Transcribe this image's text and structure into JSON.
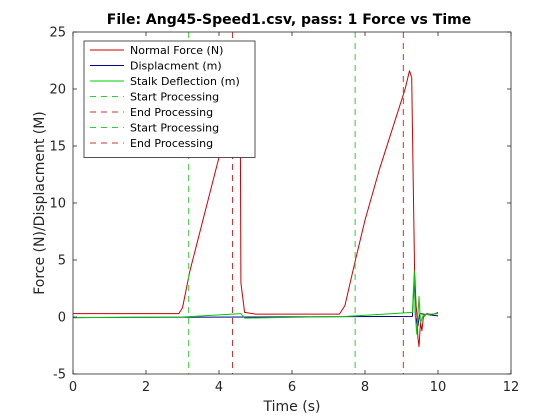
{
  "chart_data": {
    "type": "line",
    "title": "File: Ang45-Speed1.csv, pass: 1 Force vs Time",
    "xlabel": "Time (s)",
    "ylabel": "Force (N)/Displacment (M)",
    "xlim": [
      0,
      12
    ],
    "ylim": [
      -5,
      25
    ],
    "xticks": [
      0,
      2,
      4,
      6,
      8,
      10,
      12
    ],
    "yticks": [
      -5,
      0,
      5,
      10,
      15,
      20,
      25
    ],
    "grid": false,
    "legend_position": "top-left",
    "series": [
      {
        "name": "Normal Force (N)",
        "color": "#cc0000",
        "style": "solid",
        "points": [
          [
            0,
            0.3
          ],
          [
            2.9,
            0.3
          ],
          [
            3.0,
            0.8
          ],
          [
            3.2,
            4.0
          ],
          [
            3.6,
            9.0
          ],
          [
            4.0,
            14.0
          ],
          [
            4.4,
            17.2
          ],
          [
            4.58,
            19.5
          ],
          [
            4.6,
            3.0
          ],
          [
            4.7,
            0.4
          ],
          [
            5.0,
            0.25
          ],
          [
            6.0,
            0.25
          ],
          [
            7.3,
            0.25
          ],
          [
            7.45,
            1.0
          ],
          [
            7.7,
            4.5
          ],
          [
            8.0,
            8.5
          ],
          [
            8.4,
            13.0
          ],
          [
            8.8,
            17.0
          ],
          [
            9.1,
            20.0
          ],
          [
            9.22,
            21.6
          ],
          [
            9.28,
            21.0
          ],
          [
            9.32,
            12.0
          ],
          [
            9.36,
            4.0
          ],
          [
            9.4,
            1.0
          ],
          [
            9.42,
            0.3
          ],
          [
            9.45,
            -1.8
          ],
          [
            9.48,
            -2.6
          ],
          [
            9.52,
            -0.5
          ],
          [
            9.56,
            -1.2
          ],
          [
            9.6,
            0.0
          ],
          [
            9.7,
            0.3
          ],
          [
            9.85,
            0.2
          ],
          [
            10.0,
            0.4
          ]
        ]
      },
      {
        "name": "Displacment (m)",
        "color": "#00008b",
        "style": "solid",
        "points": [
          [
            0,
            -0.05
          ],
          [
            9.3,
            0.05
          ],
          [
            9.35,
            3.5
          ],
          [
            9.38,
            0.0
          ],
          [
            9.45,
            -0.8
          ],
          [
            9.5,
            0.3
          ],
          [
            10.0,
            0.1
          ]
        ]
      },
      {
        "name": "Stalk Deflection (m)",
        "color": "#00cc00",
        "style": "solid",
        "points": [
          [
            0,
            -0.05
          ],
          [
            3.0,
            0.0
          ],
          [
            4.6,
            0.3
          ],
          [
            4.7,
            -0.1
          ],
          [
            7.5,
            0.05
          ],
          [
            9.3,
            0.4
          ],
          [
            9.35,
            4.0
          ],
          [
            9.38,
            0.0
          ],
          [
            9.42,
            -1.5
          ],
          [
            9.48,
            1.8
          ],
          [
            9.52,
            -0.5
          ],
          [
            9.6,
            0.2
          ],
          [
            10.0,
            0.3
          ]
        ]
      },
      {
        "name": "Start Processing",
        "color": "#33cc33",
        "style": "dashed",
        "x": 3.17
      },
      {
        "name": "End Processing",
        "color": "#cc3333",
        "style": "dashed",
        "x": 4.37
      },
      {
        "name": "Start Processing",
        "color": "#33cc33",
        "style": "dashed",
        "x": 7.73
      },
      {
        "name": "End Processing",
        "color": "#cc3333",
        "style": "dashed",
        "x": 9.05
      }
    ]
  }
}
